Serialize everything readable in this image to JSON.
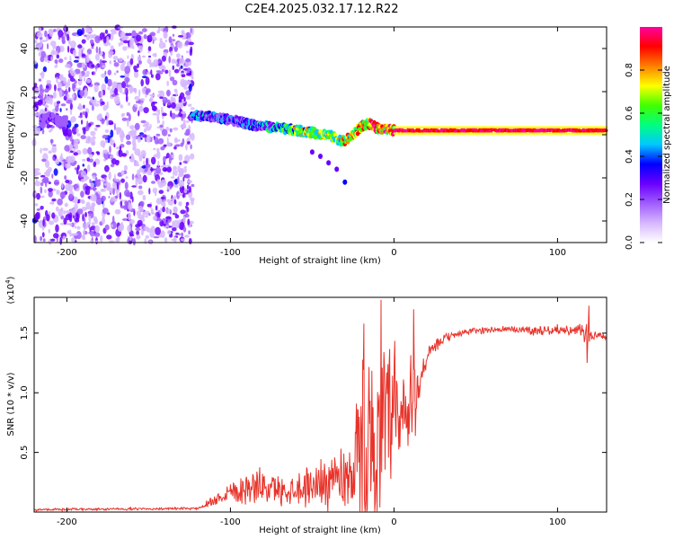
{
  "title": "C2E4.2025.032.17.12.R22",
  "chart_data": [
    {
      "type": "heatmap",
      "name": "spectrogram",
      "xlabel": "Height of straight line (km)",
      "ylabel": "Frequency (Hz)",
      "xlim": [
        -220,
        130
      ],
      "ylim": [
        -50,
        50
      ],
      "x_ticks": [
        -200,
        -100,
        0,
        100
      ],
      "x_tick_labels": [
        "-200",
        "-100",
        "0",
        "100"
      ],
      "y_ticks": [
        -40,
        -20,
        0,
        20,
        40
      ],
      "y_tick_labels": [
        "-40",
        "-20",
        "0",
        "20",
        "40"
      ],
      "colorbar": {
        "label": "Normalized spectral amplitude",
        "range": [
          0.0,
          1.0
        ],
        "ticks": [
          0.0,
          0.2,
          0.4,
          0.6,
          0.8
        ],
        "tick_labels": [
          "0.0",
          "0.2",
          "0.4",
          "0.6",
          "0.8"
        ],
        "colormap": [
          "#ffffff",
          "#d6b7ff",
          "#a05cff",
          "#6a00ff",
          "#0000ff",
          "#00c8ff",
          "#00ff80",
          "#40ff00",
          "#ffff00",
          "#ff8000",
          "#ff0000",
          "#ff00a0"
        ]
      },
      "noise_region_x": [
        -220,
        -123
      ],
      "signal_track": {
        "x": [
          -215,
          -210,
          -205,
          -120,
          -110,
          -100,
          -90,
          -80,
          -70,
          -60,
          -50,
          -40,
          -35,
          -30,
          -25,
          -20,
          -15,
          -10,
          0,
          20,
          40,
          60,
          80,
          100,
          120,
          130
        ],
        "freq": [
          7,
          8,
          6,
          9,
          8,
          7,
          5,
          4,
          3,
          2,
          1,
          0,
          -2,
          -3,
          0,
          4,
          5,
          3,
          2,
          2,
          2,
          2,
          2,
          2,
          2,
          2
        ],
        "amplitude": [
          0.3,
          0.35,
          0.25,
          0.55,
          0.5,
          0.5,
          0.55,
          0.6,
          0.7,
          0.8,
          0.85,
          0.9,
          0.85,
          0.9,
          0.95,
          0.95,
          1.0,
          1.0,
          1.0,
          1.0,
          1.0,
          1.0,
          1.0,
          1.0,
          1.0,
          1.0
        ]
      },
      "secondary_track": {
        "x": [
          -50,
          -45,
          -40,
          -35,
          -30
        ],
        "freq": [
          -8,
          -10,
          -13,
          -16,
          -22
        ]
      }
    },
    {
      "type": "line",
      "name": "snr",
      "xlabel": "Height of straight line (km)",
      "ylabel": "SNR (10 * v/v)",
      "yscale_label": "(x10",
      "yscale_exp": "4",
      "xlim": [
        -220,
        130
      ],
      "ylim": [
        0,
        1.8
      ],
      "x_ticks": [
        -200,
        -100,
        0,
        100
      ],
      "x_tick_labels": [
        "-200",
        "-100",
        "0",
        "100"
      ],
      "y_ticks": [
        0.5,
        1.0,
        1.5
      ],
      "y_tick_labels": [
        "0.5",
        "1.0",
        "1.5"
      ],
      "color": "#e8332a",
      "envelope": {
        "x": [
          -220,
          -120,
          -110,
          -100,
          -90,
          -80,
          -70,
          -60,
          -50,
          -40,
          -30,
          -25,
          -20,
          -15,
          -10,
          -5,
          0,
          5,
          10,
          15,
          20,
          30,
          40,
          50,
          60,
          70,
          80,
          90,
          100,
          110,
          118,
          122,
          130
        ],
        "mean": [
          0.02,
          0.03,
          0.1,
          0.18,
          0.2,
          0.22,
          0.18,
          0.2,
          0.22,
          0.28,
          0.3,
          0.35,
          0.5,
          0.55,
          0.55,
          0.65,
          0.7,
          0.75,
          0.85,
          1.05,
          1.3,
          1.45,
          1.5,
          1.52,
          1.53,
          1.53,
          1.53,
          1.52,
          1.53,
          1.52,
          1.5,
          1.48,
          1.47
        ],
        "amp": [
          0.01,
          0.01,
          0.05,
          0.1,
          0.14,
          0.15,
          0.12,
          0.14,
          0.18,
          0.25,
          0.3,
          0.35,
          0.8,
          0.9,
          0.6,
          0.8,
          0.8,
          0.65,
          0.55,
          0.2,
          0.08,
          0.04,
          0.03,
          0.03,
          0.03,
          0.03,
          0.04,
          0.04,
          0.04,
          0.04,
          0.1,
          0.05,
          0.02
        ]
      },
      "peaks": [
        {
          "x": -18.5,
          "y": 1.58
        },
        {
          "x": -8,
          "y": 1.78
        },
        {
          "x": 12,
          "y": 1.7
        },
        {
          "x": 119,
          "y": 1.73
        },
        {
          "x": 118,
          "y": 1.25
        }
      ]
    }
  ]
}
